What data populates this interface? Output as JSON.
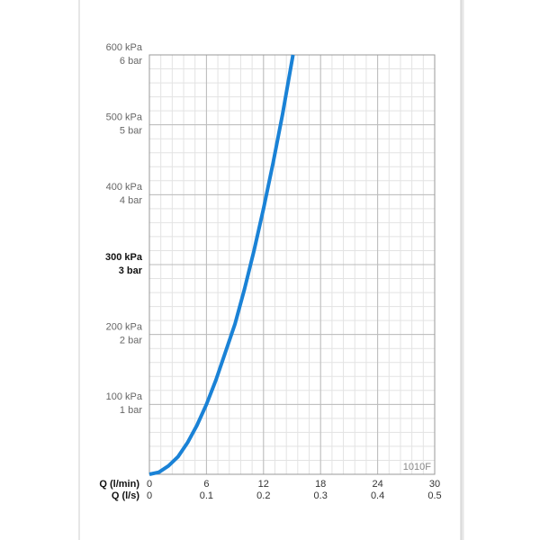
{
  "chart_data": {
    "type": "line",
    "x_label": "Q (l/min)",
    "x2_label": "Q (l/s)",
    "annotation": "1010F",
    "x": [
      0,
      1,
      2,
      3,
      4,
      5,
      6,
      7,
      8,
      9,
      10,
      11,
      12,
      13,
      14,
      15.1
    ],
    "series": [
      {
        "color": "#1a82d6",
        "values": [
          0,
          3,
          12,
          25,
          45,
          70,
          100,
          135,
          175,
          215,
          265,
          320,
          380,
          445,
          515,
          600
        ]
      }
    ],
    "xlim": [
      0,
      30
    ],
    "xticks": [
      0,
      6,
      12,
      18,
      24,
      30
    ],
    "x2lim": [
      0,
      0.5
    ],
    "x2ticks": [
      0,
      0.1,
      0.2,
      0.3,
      0.4,
      0.5
    ],
    "ylim": [
      0,
      600
    ],
    "yticks": [
      {
        "value": 100,
        "label": "100 kPa"
      },
      {
        "value": 200,
        "label": "200 kPa"
      },
      {
        "value": 300,
        "label": "300 kPa"
      },
      {
        "value": 400,
        "label": "400 kPa"
      },
      {
        "value": 500,
        "label": "500 kPa"
      },
      {
        "value": 600,
        "label": "600 kPa"
      }
    ],
    "y2lim": [
      0,
      6
    ],
    "y2ticks": [
      {
        "value": 1,
        "label": "1 bar"
      },
      {
        "value": 2,
        "label": "2 bar"
      },
      {
        "value": 3,
        "label": "3 bar"
      },
      {
        "value": 4,
        "label": "4 bar"
      },
      {
        "value": 5,
        "label": "5 bar"
      },
      {
        "value": 6,
        "label": "6 bar"
      }
    ],
    "highlight_ytick": 300,
    "x_minor_step": 1.2,
    "y_minor_step": 20,
    "grid": true
  }
}
